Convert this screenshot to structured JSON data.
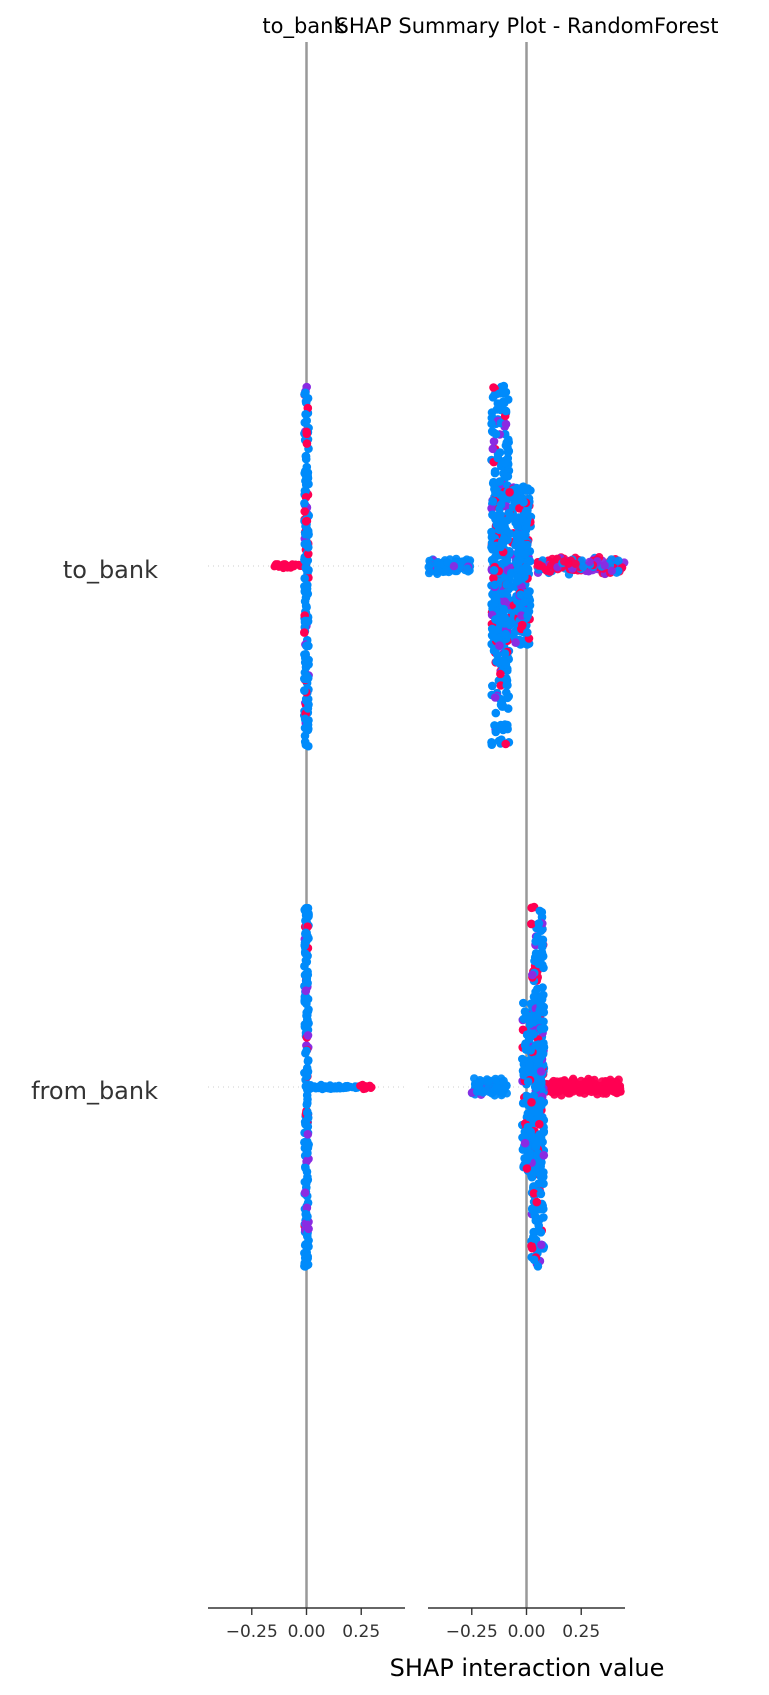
{
  "chart_data": {
    "type": "scatter",
    "title": "SHAP Summary Plot - RandomForest",
    "panel_titles": [
      "to_bank",
      "SHAP Summary Plot - RandomForest"
    ],
    "xlabel": "SHAP interaction value",
    "features": [
      "to_bank",
      "from_bank"
    ],
    "xlim": [
      -0.45,
      0.45
    ],
    "xticks": [
      -0.25,
      0.0,
      0.25
    ],
    "xtick_labels": [
      "−0.25",
      "0.00",
      "0.25"
    ],
    "grid": false,
    "legend": "none",
    "colors": {
      "high": "#ff0052",
      "low": "#008bfb",
      "mid": "#8a2be2",
      "zero_line": "#999999",
      "axis": "#333333"
    },
    "panels": [
      {
        "name": "to_bank",
        "rows": [
          {
            "feature": "to_bank",
            "spines": [
              {
                "x": 0.0,
                "width": 0.02,
                "extent": 0.95
              }
            ],
            "tails": [
              {
                "from": -0.16,
                "to": 0.0,
                "color": "high"
              }
            ],
            "arms": []
          },
          {
            "feature": "from_bank",
            "spines": [
              {
                "x": 0.0,
                "width": 0.02,
                "extent": 0.95
              }
            ],
            "tails": [
              {
                "from": 0.0,
                "to": 0.24,
                "color": "low"
              },
              {
                "from": 0.24,
                "to": 0.3,
                "color": "high"
              }
            ],
            "arms": []
          }
        ]
      },
      {
        "name": "SHAP Summary Plot - RandomForest",
        "rows": [
          {
            "feature": "to_bank",
            "spines": [
              {
                "x": -0.12,
                "width": 0.08,
                "extent": 0.95
              },
              {
                "x": -0.07,
                "width": 0.18,
                "extent": 0.42
              },
              {
                "x": -0.02,
                "width": 0.05,
                "extent": 0.35
              }
            ],
            "tails": [],
            "arms": [
              {
                "from": -0.45,
                "to": -0.25,
                "color": "low"
              },
              {
                "from": 0.05,
                "to": 0.45,
                "color": "mid"
              }
            ]
          },
          {
            "feature": "from_bank",
            "spines": [
              {
                "x": 0.05,
                "width": 0.06,
                "extent": 0.95
              },
              {
                "x": 0.03,
                "width": 0.1,
                "extent": 0.45
              }
            ],
            "tails": [],
            "arms": [
              {
                "from": -0.25,
                "to": -0.08,
                "color": "low"
              },
              {
                "from": 0.08,
                "to": 0.43,
                "color": "high"
              }
            ]
          }
        ]
      }
    ]
  }
}
